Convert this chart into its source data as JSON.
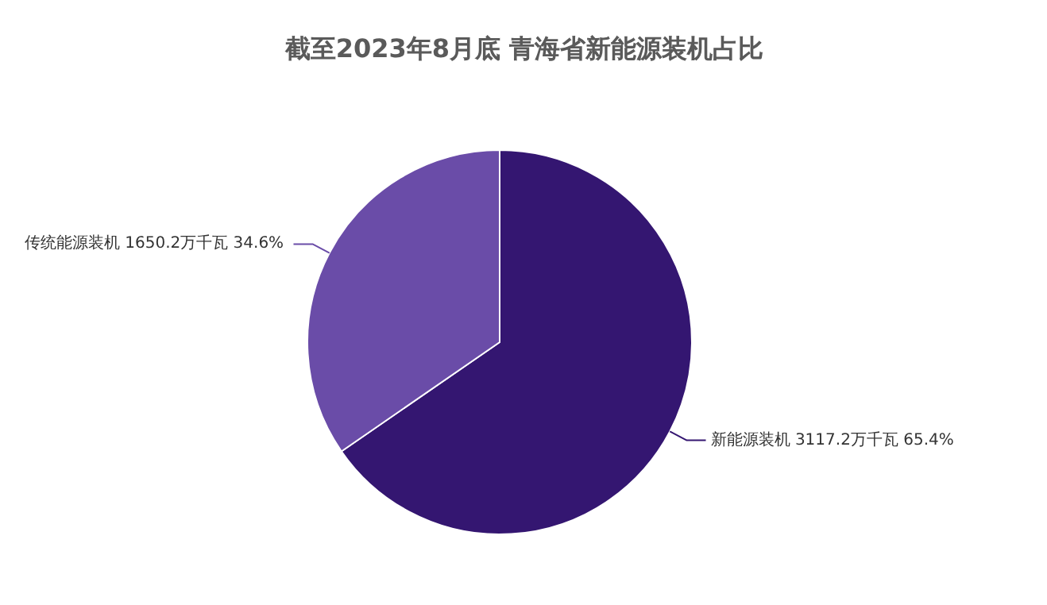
{
  "chart_data": {
    "type": "pie",
    "title": "截至2023年8月底 青海省新能源装机占比",
    "categories": [
      "新能源装机",
      "传统能源装机"
    ],
    "values": [
      3117.2,
      1650.2
    ],
    "value_labels": [
      "3117.2万千瓦  65.4%",
      "1650.2万千瓦  34.6%"
    ],
    "colors": [
      "#341671",
      "#6a4ca8"
    ]
  }
}
